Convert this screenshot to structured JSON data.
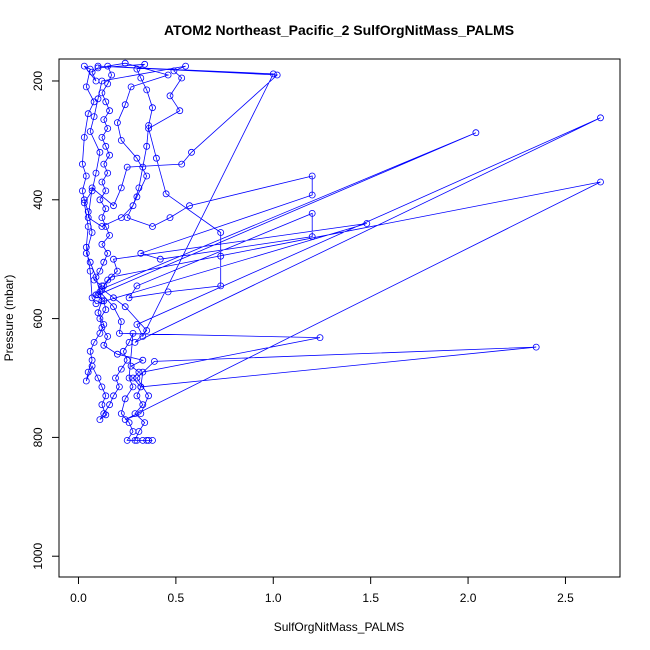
{
  "chart_data": {
    "type": "line",
    "title": "ATOM2 Northeast_Pacific_2 SulfOrgNitMass_PALMS",
    "xlabel": "SulfOrgNitMass_PALMS",
    "ylabel": "Pressure (mbar)",
    "xlim": [
      -0.1,
      2.78
    ],
    "ylim": [
      1035,
      163
    ],
    "y_reversed": true,
    "x_ticks": [
      0.0,
      0.5,
      1.0,
      1.5,
      2.0,
      2.5
    ],
    "x_tick_labels": [
      "0.0",
      "0.5",
      "1.0",
      "1.5",
      "2.0",
      "2.5"
    ],
    "y_ticks": [
      200,
      400,
      600,
      800,
      1000
    ],
    "y_tick_labels": [
      "200",
      "400",
      "600",
      "800",
      "1000"
    ],
    "grid": false,
    "legend": "none",
    "color": "#0000ff",
    "series": [
      {
        "values": [
          [
            0.33,
            805
          ],
          [
            0.36,
            805
          ],
          [
            0.29,
            805
          ],
          [
            0.31,
            790
          ],
          [
            0.34,
            775
          ],
          [
            0.29,
            760
          ],
          [
            0.33,
            745
          ],
          [
            0.3,
            730
          ],
          [
            0.32,
            715
          ],
          [
            0.28,
            700
          ],
          [
            0.31,
            690
          ],
          [
            0.27,
            680
          ],
          [
            0.33,
            670
          ],
          [
            0.2,
            660
          ],
          [
            0.13,
            645
          ],
          [
            0.15,
            630
          ],
          [
            0.12,
            615
          ],
          [
            0.11,
            600
          ],
          [
            0.14,
            585
          ],
          [
            0.13,
            570
          ],
          [
            0.09,
            560
          ],
          [
            0.12,
            545
          ],
          [
            0.08,
            535
          ],
          [
            0.11,
            520
          ],
          [
            0.13,
            505
          ],
          [
            0.15,
            490
          ],
          [
            0.12,
            475
          ],
          [
            0.16,
            460
          ],
          [
            0.14,
            445
          ],
          [
            0.12,
            430
          ],
          [
            0.14,
            415
          ],
          [
            0.11,
            400
          ],
          [
            0.14,
            385
          ],
          [
            0.12,
            370
          ],
          [
            0.15,
            355
          ],
          [
            0.13,
            340
          ],
          [
            0.16,
            325
          ],
          [
            0.14,
            310
          ],
          [
            0.12,
            295
          ],
          [
            0.15,
            280
          ],
          [
            0.13,
            265
          ],
          [
            0.16,
            250
          ],
          [
            0.14,
            235
          ],
          [
            0.12,
            220
          ],
          [
            0.15,
            205
          ],
          [
            0.17,
            190
          ],
          [
            0.15,
            175
          ],
          [
            0.24,
            170
          ],
          [
            0.46,
            190
          ],
          [
            0.27,
            210
          ],
          [
            0.24,
            240
          ],
          [
            0.2,
            270
          ],
          [
            0.22,
            300
          ],
          [
            0.3,
            330
          ],
          [
            0.35,
            360
          ],
          [
            0.3,
            395
          ],
          [
            0.25,
            430
          ],
          [
            0.38,
            445
          ],
          [
            0.47,
            430
          ],
          [
            0.57,
            410
          ],
          [
            1.2,
            360
          ],
          [
            1.2,
            392
          ],
          [
            0.32,
            490
          ],
          [
            0.42,
            500
          ],
          [
            1.2,
            462
          ],
          [
            1.2,
            423
          ],
          [
            0.3,
            545
          ],
          [
            0.26,
            565
          ],
          [
            0.46,
            555
          ],
          [
            0.73,
            545
          ],
          [
            0.73,
            495
          ],
          [
            0.73,
            455
          ],
          [
            0.45,
            390
          ],
          [
            0.4,
            330
          ],
          [
            0.36,
            280
          ],
          [
            0.52,
            250
          ],
          [
            0.47,
            225
          ],
          [
            0.53,
            195
          ],
          [
            0.49,
            183
          ],
          [
            0.55,
            175
          ],
          [
            0.12,
            200
          ],
          [
            0.1,
            230
          ],
          [
            0.08,
            260
          ],
          [
            0.06,
            285
          ],
          [
            0.11,
            320
          ],
          [
            0.09,
            355
          ],
          [
            0.07,
            385
          ],
          [
            0.03,
            405
          ],
          [
            0.05,
            445
          ],
          [
            0.04,
            480
          ],
          [
            0.06,
            520
          ],
          [
            0.07,
            565
          ],
          [
            0.09,
            575
          ],
          [
            1.48,
            440
          ],
          [
            0.18,
            500
          ],
          [
            0.2,
            520
          ],
          [
            0.15,
            535
          ],
          [
            0.11,
            555
          ],
          [
            0.18,
            580
          ],
          [
            0.22,
            605
          ],
          [
            0.21,
            625
          ],
          [
            1.24,
            632
          ],
          [
            0.33,
            690
          ],
          [
            0.32,
            715
          ],
          [
            2.35,
            648
          ],
          [
            0.39,
            672
          ],
          [
            0.3,
            700
          ],
          [
            0.36,
            730
          ],
          [
            0.32,
            760
          ],
          [
            0.24,
            770
          ],
          [
            2.68,
            370
          ],
          [
            0.17,
            530
          ],
          [
            0.13,
            545
          ],
          [
            0.1,
            560
          ],
          [
            2.04,
            287
          ],
          [
            0.12,
            550
          ],
          [
            0.18,
            565
          ],
          [
            0.24,
            580
          ],
          [
            0.35,
            620
          ],
          [
            0.29,
            640
          ],
          [
            2.68,
            262
          ],
          [
            0.3,
            610
          ],
          [
            0.33,
            630
          ],
          [
            1.0,
            188
          ],
          [
            0.1,
            175
          ],
          [
            1.02,
            190
          ],
          [
            0.58,
            320
          ],
          [
            0.53,
            340
          ],
          [
            0.25,
            345
          ],
          [
            0.22,
            380
          ],
          [
            0.18,
            410
          ],
          [
            0.07,
            380
          ],
          [
            0.05,
            430
          ],
          [
            0.12,
            445
          ],
          [
            0.22,
            430
          ],
          [
            0.28,
            410
          ],
          [
            0.31,
            380
          ],
          [
            0.33,
            345
          ],
          [
            0.35,
            310
          ],
          [
            0.36,
            275
          ],
          [
            0.38,
            245
          ],
          [
            0.35,
            215
          ],
          [
            0.32,
            195
          ],
          [
            0.3,
            180
          ],
          [
            0.34,
            172
          ],
          [
            0.1,
            178
          ],
          [
            0.07,
            185
          ],
          [
            0.09,
            200
          ],
          [
            0.03,
            175
          ],
          [
            0.06,
            180
          ],
          [
            0.04,
            210
          ],
          [
            0.08,
            235
          ],
          [
            0.05,
            255
          ],
          [
            0.03,
            295
          ],
          [
            0.02,
            340
          ],
          [
            0.04,
            360
          ],
          [
            0.02,
            385
          ],
          [
            0.03,
            400
          ],
          [
            0.05,
            420
          ],
          [
            0.07,
            455
          ],
          [
            0.04,
            490
          ],
          [
            0.06,
            505
          ],
          [
            0.09,
            530
          ],
          [
            0.12,
            570
          ],
          [
            0.1,
            590
          ],
          [
            0.13,
            610
          ],
          [
            0.11,
            625
          ],
          [
            0.08,
            640
          ],
          [
            0.06,
            655
          ],
          [
            0.07,
            670
          ],
          [
            0.05,
            690
          ],
          [
            0.04,
            705
          ],
          [
            0.07,
            680
          ],
          [
            0.1,
            700
          ],
          [
            0.12,
            715
          ],
          [
            0.14,
            730
          ],
          [
            0.12,
            745
          ],
          [
            0.14,
            762
          ],
          [
            0.11,
            770
          ],
          [
            0.13,
            760
          ],
          [
            0.16,
            745
          ],
          [
            0.18,
            730
          ],
          [
            0.21,
            715
          ],
          [
            0.19,
            700
          ],
          [
            0.22,
            685
          ],
          [
            0.25,
            670
          ],
          [
            0.23,
            655
          ],
          [
            0.26,
            640
          ],
          [
            0.28,
            625
          ],
          [
            0.26,
            700
          ],
          [
            0.28,
            715
          ],
          [
            0.24,
            735
          ],
          [
            0.22,
            760
          ],
          [
            0.26,
            775
          ],
          [
            0.28,
            790
          ],
          [
            0.25,
            805
          ],
          [
            0.3,
            805
          ],
          [
            0.35,
            805
          ],
          [
            0.38,
            805
          ]
        ]
      }
    ]
  }
}
